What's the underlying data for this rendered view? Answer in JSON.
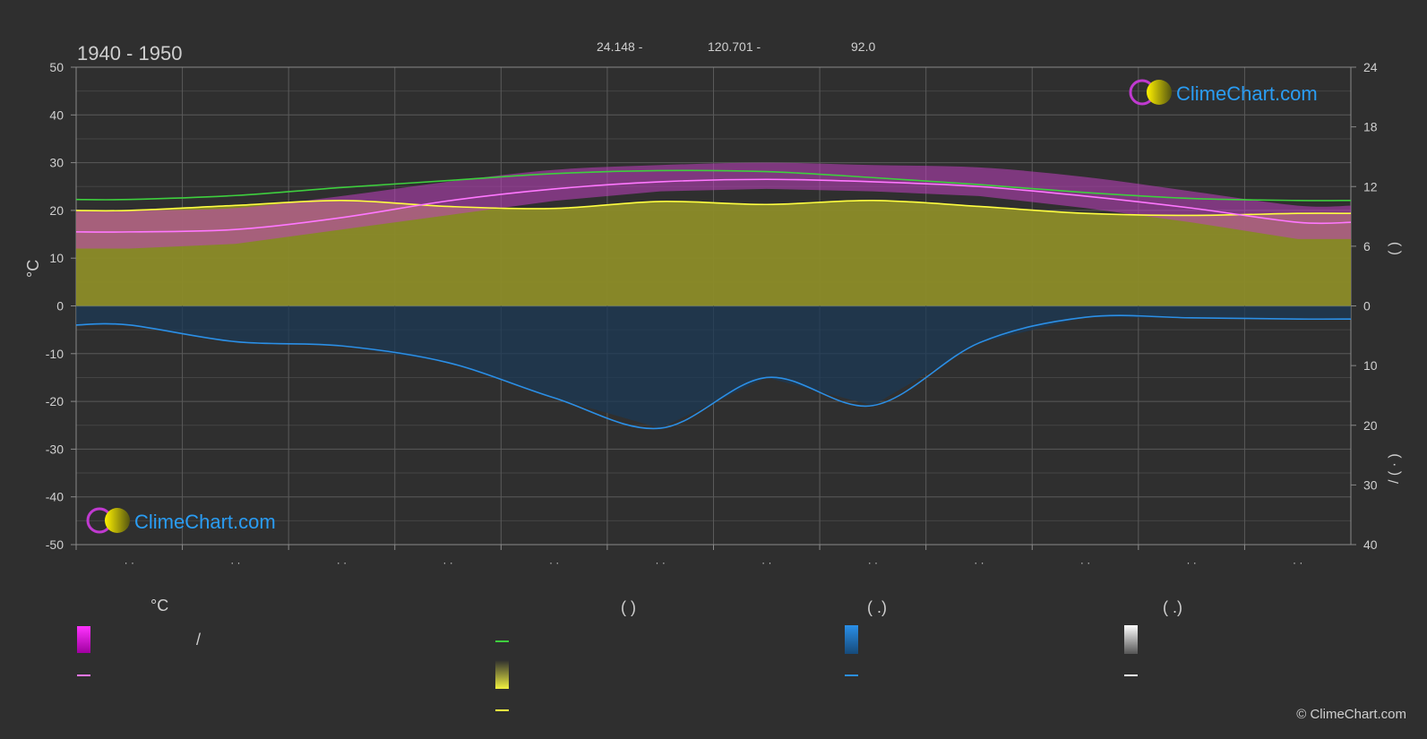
{
  "header": {
    "title": "1940 - 1950",
    "coords": [
      "24.148 -",
      "120.701 -",
      "92.0"
    ]
  },
  "brand": {
    "name": "ClimeChart.com",
    "copyright": "© ClimeChart.com"
  },
  "axes": {
    "left_label": "°C",
    "left_ticks": [
      "50",
      "40",
      "30",
      "20",
      "10",
      "0",
      "-10",
      "-20",
      "-30",
      "-40",
      "-50"
    ],
    "right_top_ticks": [
      "24",
      "18",
      "12",
      "6",
      "0"
    ],
    "right_bottom_ticks": [
      "10",
      "20",
      "30",
      "40"
    ],
    "right_top_label": "(   )",
    "right_bottom_label": "/   (  ·  )",
    "month_ticks": [
      "· ·",
      "· ·",
      "· ·",
      "· ·",
      "· ·",
      "· ·",
      "· ·",
      "· ·",
      "· ·",
      "· ·",
      "· ·",
      "· ·"
    ]
  },
  "legend": {
    "col1_title": "°C",
    "col2_title": "(           )",
    "col3_title": "(   .)",
    "col4_title": "(   .)",
    "col1_item1": "/",
    "colors": {
      "temp_range": "#e400e4",
      "temp_mean": "#ff77ff",
      "daylight": "#3ecf3e",
      "sunshine": "#e8e830",
      "sunshine_mean": "#ffff40",
      "precip": "#1f7fd0",
      "precip_mean": "#2b8fe6",
      "snow": "#d8d8d8",
      "snow_mean": "#ffffff"
    }
  },
  "chart_data": {
    "type": "line",
    "title": "1940 - 1950",
    "x": [
      "Jan",
      "Feb",
      "Mar",
      "Apr",
      "May",
      "Jun",
      "Jul",
      "Aug",
      "Sep",
      "Oct",
      "Nov",
      "Dec"
    ],
    "ylim": [
      -50,
      50
    ],
    "y2_top_lim": [
      0,
      24
    ],
    "y2_bottom_lim": [
      0,
      40
    ],
    "grid": true,
    "series": [
      {
        "key": "daylight",
        "axis": "right_hours",
        "values": [
          10.7,
          11.1,
          11.9,
          12.6,
          13.3,
          13.6,
          13.5,
          12.9,
          12.2,
          11.4,
          10.8,
          10.6
        ]
      },
      {
        "key": "sunshine_mean",
        "axis": "right_hours",
        "values": [
          9.6,
          10.1,
          10.6,
          10.0,
          9.8,
          10.5,
          10.2,
          10.6,
          10.0,
          9.3,
          9.1,
          9.3
        ]
      },
      {
        "key": "temp_mean",
        "axis": "left",
        "values": [
          15.5,
          16.0,
          18.5,
          22.0,
          24.5,
          26.0,
          26.5,
          26.0,
          25.0,
          23.0,
          20.5,
          17.5
        ]
      },
      {
        "key": "precip_mean",
        "axis": "right_mm",
        "values": [
          3.2,
          6.0,
          6.7,
          9.5,
          15.4,
          20.5,
          12.0,
          16.7,
          6.2,
          1.9,
          2.0,
          2.2
        ]
      }
    ],
    "temp_band": {
      "min": [
        12,
        13,
        16,
        19,
        22,
        24,
        24.5,
        24,
        23,
        20.5,
        17.5,
        14
      ],
      "max": [
        20,
        20.5,
        23,
        26,
        28.5,
        29.5,
        30,
        29.5,
        29,
        27,
        24,
        21
      ]
    }
  }
}
